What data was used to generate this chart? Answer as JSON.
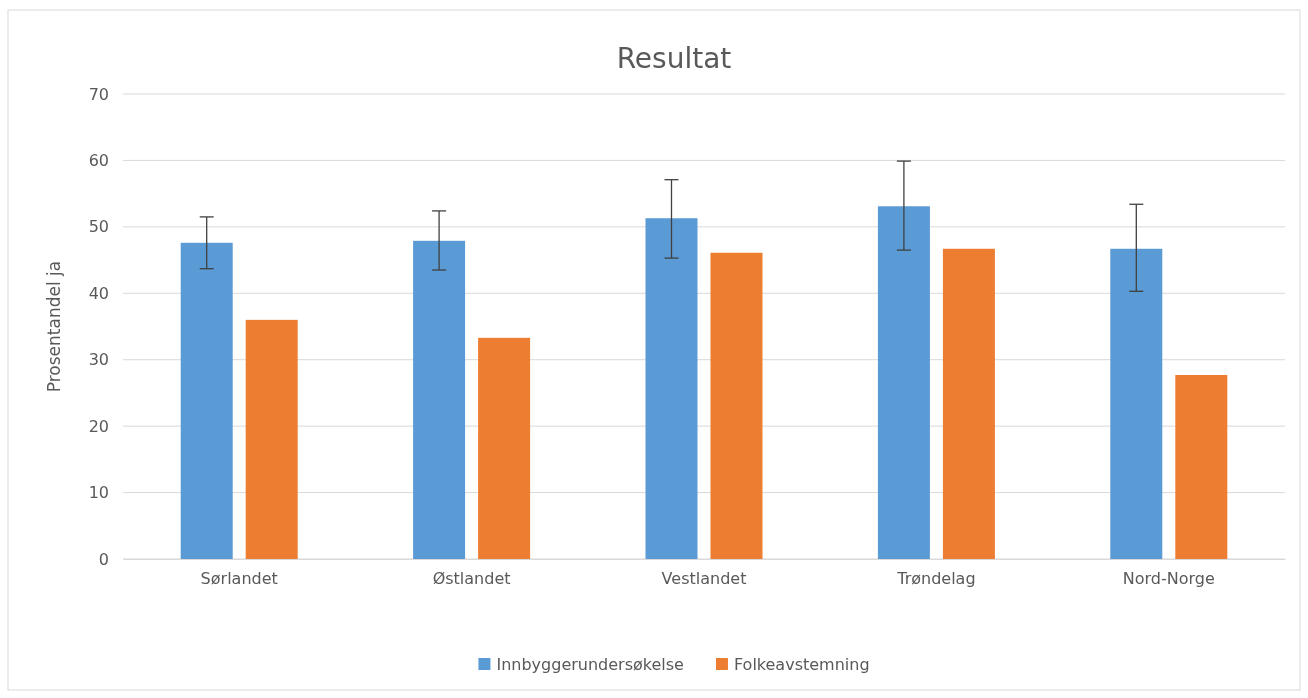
{
  "chart_data": {
    "type": "bar",
    "title": "Resultat",
    "ylabel": "Prosentandel ja",
    "categories": [
      "Sørlandet",
      "Østlandet",
      "Vestlandet",
      "Trøndelag",
      "Nord-Norge"
    ],
    "series": [
      {
        "name": "Innbyggerundersøkelse",
        "color": "#5b9bd5",
        "values": [
          47.6,
          47.9,
          51.3,
          53.1,
          46.7
        ],
        "errors": [
          [
            43.7,
            51.5
          ],
          [
            43.5,
            52.4
          ],
          [
            45.3,
            57.1
          ],
          [
            46.5,
            59.9
          ],
          [
            40.3,
            53.4
          ]
        ]
      },
      {
        "name": "Folkeavstemning",
        "color": "#ed7d31",
        "values": [
          36.0,
          33.3,
          46.1,
          46.7,
          27.7
        ]
      }
    ],
    "ylim": [
      0,
      70
    ],
    "yticks": [
      0,
      10,
      20,
      30,
      40,
      50,
      60,
      70
    ],
    "grid": "y",
    "legend": "bottom"
  }
}
